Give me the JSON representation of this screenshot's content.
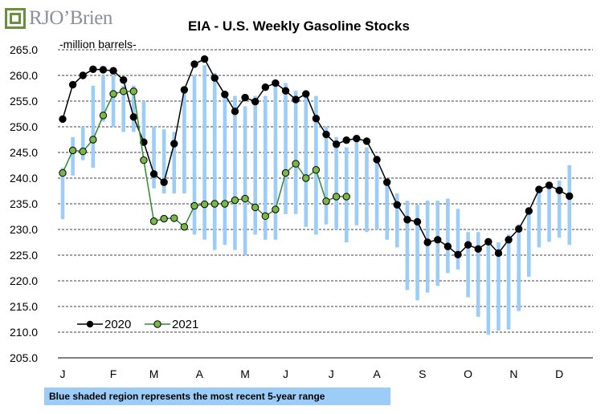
{
  "brand": {
    "logo_text": "RJO’Brien"
  },
  "footnote": "Blue shaded region represents the most recent 5-year range",
  "colors": {
    "range": "#9ccdf9",
    "s2020": "#000000",
    "s2021_line": "#2e8b2e",
    "s2021_marker": "#7ab648",
    "grid": "#000000"
  },
  "chart_data": {
    "type": "line",
    "title": "EIA - U.S. Weekly Gasoline Stocks",
    "ylabel": "-million barrels-",
    "xlabel": "",
    "ylim": [
      205,
      265
    ],
    "yticks": [
      205.0,
      210.0,
      215.0,
      220.0,
      225.0,
      230.0,
      235.0,
      240.0,
      245.0,
      250.0,
      255.0,
      260.0,
      265.0
    ],
    "ytick_labels": [
      "205.0",
      "210.0",
      "215.0",
      "220.0",
      "225.0",
      "230.0",
      "235.0",
      "240.0",
      "245.0",
      "250.0",
      "255.0",
      "260.0",
      "265.0"
    ],
    "x_unit": "week of year",
    "xlim": [
      1,
      53
    ],
    "month_labels": [
      "J",
      "F",
      "M",
      "A",
      "M",
      "J",
      "J",
      "A",
      "S",
      "O",
      "N",
      "D"
    ],
    "month_label_weeks": [
      1,
      6,
      10,
      14.5,
      19,
      23,
      27.5,
      32,
      36.5,
      41,
      45.5,
      50
    ],
    "grid": "horizontal dashed",
    "legend": {
      "placement": "bottom-left",
      "entries": [
        "2020",
        "2021"
      ]
    },
    "range_5yr": {
      "low": [
        232.0,
        240.5,
        243.5,
        242.0,
        251.0,
        250.0,
        249.0,
        249.0,
        247.0,
        238.0,
        237.0,
        237.0,
        237.0,
        229.0,
        228.0,
        226.0,
        227.0,
        226.0,
        225.0,
        229.0,
        228.0,
        228.0,
        233.0,
        233.0,
        230.5,
        229.0,
        231.0,
        230.0,
        227.5,
        230.8,
        229.5,
        230.0,
        228.0,
        226.5,
        218.2,
        216.2,
        217.7,
        219.0,
        221.5,
        222.2,
        216.8,
        213.0,
        209.5,
        210.3,
        210.5,
        214.1,
        220.8,
        226.5,
        227.6,
        228.4,
        227.0
      ],
      "high": [
        242.0,
        248.0,
        250.0,
        258.0,
        260.0,
        260.0,
        258.0,
        258.0,
        255.0,
        250.0,
        249.5,
        249.0,
        257.0,
        260.0,
        262.0,
        260.5,
        257.0,
        256.0,
        254.0,
        256.0,
        256.0,
        258.0,
        258.5,
        257.0,
        256.0,
        256.0,
        250.0,
        248.0,
        246.0,
        247.0,
        246.0,
        243.0,
        239.0,
        237.0,
        235.6,
        234.8,
        235.6,
        235.6,
        236.0,
        234.0,
        229.5,
        229.5,
        228.0,
        227.5,
        229.0,
        231.0,
        233.5,
        238.0,
        239.0,
        239.5,
        242.5
      ]
    },
    "series": [
      {
        "name": "2020",
        "values": [
          251.5,
          258.2,
          260.0,
          261.2,
          261.1,
          260.9,
          259.1,
          251.9,
          247.0,
          240.8,
          239.2,
          246.7,
          257.2,
          262.2,
          263.2,
          259.5,
          256.3,
          253.0,
          255.7,
          254.9,
          257.7,
          258.5,
          257.0,
          255.3,
          256.4,
          251.6,
          248.5,
          246.6,
          247.4,
          247.7,
          247.2,
          243.6,
          239.2,
          234.8,
          231.9,
          231.5,
          227.5,
          228.0,
          226.7,
          225.1,
          227.0,
          226.2,
          227.6,
          225.4,
          228.0,
          230.1,
          233.6,
          237.8,
          238.6,
          237.6,
          236.5
        ]
      },
      {
        "name": "2021",
        "values": [
          241.0,
          245.4,
          245.2,
          247.5,
          252.2,
          256.4,
          256.9,
          256.9,
          243.5,
          231.6,
          232.1,
          232.2,
          230.5,
          234.6,
          234.9,
          235.0,
          235.0,
          235.7,
          236.0,
          234.3,
          232.6,
          233.9,
          241.0,
          242.8,
          240.0,
          241.6,
          235.5,
          236.4,
          236.4
        ]
      }
    ]
  }
}
